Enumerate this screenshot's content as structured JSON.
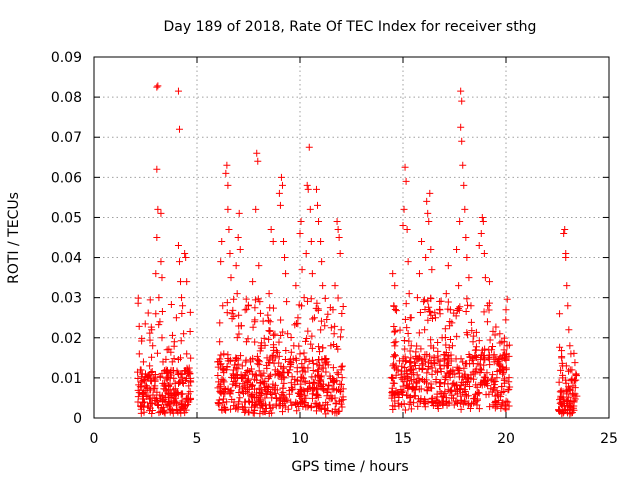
{
  "chart_data": {
    "type": "scatter",
    "title": "Day 189 of 2018, Rate Of TEC Index for receiver sthg",
    "xlabel": "GPS time / hours",
    "ylabel": "ROTI / TECUs",
    "xlim": [
      0,
      25
    ],
    "ylim": [
      0,
      0.09
    ],
    "xticks": [
      0,
      5,
      10,
      15,
      20,
      25
    ],
    "xtick_labels": [
      "0",
      "5",
      "10",
      "15",
      "20",
      "25"
    ],
    "yticks": [
      0,
      0.01,
      0.02,
      0.03,
      0.04,
      0.05,
      0.06,
      0.07,
      0.08,
      0.09
    ],
    "ytick_labels": [
      "0",
      "0.01",
      "0.02",
      "0.03",
      "0.04",
      "0.05",
      "0.06",
      "0.07",
      "0.08",
      "0.09"
    ],
    "grid": true,
    "marker": "+",
    "color": "#ff0000",
    "series": [
      {
        "name": "ROTI",
        "points": [
          [
            2.2,
            0.016
          ],
          [
            2.25,
            0.012
          ],
          [
            2.3,
            0.009
          ],
          [
            2.35,
            0.006
          ],
          [
            2.4,
            0.014
          ],
          [
            2.45,
            0.004
          ],
          [
            2.5,
            0.011
          ],
          [
            2.55,
            0.008
          ],
          [
            2.6,
            0.003
          ],
          [
            2.7,
            0.013
          ],
          [
            2.75,
            0.007
          ],
          [
            2.8,
            0.022
          ],
          [
            2.85,
            0.018
          ],
          [
            2.9,
            0.01
          ],
          [
            2.95,
            0.005
          ],
          [
            3.0,
            0.026
          ],
          [
            3.0,
            0.036
          ],
          [
            3.05,
            0.0825
          ],
          [
            3.1,
            0.0828
          ],
          [
            3.05,
            0.062
          ],
          [
            3.1,
            0.052
          ],
          [
            3.05,
            0.045
          ],
          [
            3.15,
            0.03
          ],
          [
            3.2,
            0.024
          ],
          [
            3.25,
            0.051
          ],
          [
            3.25,
            0.039
          ],
          [
            3.3,
            0.035
          ],
          [
            3.3,
            0.02
          ],
          [
            3.35,
            0.014
          ],
          [
            3.4,
            0.008
          ],
          [
            3.45,
            0.004
          ],
          [
            3.5,
            0.012
          ],
          [
            3.55,
            0.017
          ],
          [
            3.6,
            0.006
          ],
          [
            3.7,
            0.01
          ],
          [
            3.8,
            0.014
          ],
          [
            3.85,
            0.007
          ],
          [
            3.9,
            0.019
          ],
          [
            4.0,
            0.025
          ],
          [
            4.1,
            0.0815
          ],
          [
            4.15,
            0.072
          ],
          [
            4.1,
            0.043
          ],
          [
            4.15,
            0.039
          ],
          [
            4.2,
            0.034
          ],
          [
            4.25,
            0.03
          ],
          [
            4.3,
            0.028
          ],
          [
            4.35,
            0.021
          ],
          [
            4.4,
            0.041
          ],
          [
            4.45,
            0.04
          ],
          [
            4.5,
            0.034
          ],
          [
            4.5,
            0.016
          ],
          [
            4.55,
            0.012
          ],
          [
            4.6,
            0.008
          ],
          [
            4.6,
            0.004
          ],
          [
            4.65,
            0.011
          ],
          [
            4.2,
            0.015
          ],
          [
            4.3,
            0.006
          ],
          [
            6.0,
            0.014
          ],
          [
            6.05,
            0.009
          ],
          [
            6.1,
            0.019
          ],
          [
            6.15,
            0.039
          ],
          [
            6.2,
            0.044
          ],
          [
            6.25,
            0.028
          ],
          [
            6.3,
            0.016
          ],
          [
            6.35,
            0.006
          ],
          [
            6.4,
            0.061
          ],
          [
            6.45,
            0.063
          ],
          [
            6.5,
            0.058
          ],
          [
            6.5,
            0.052
          ],
          [
            6.55,
            0.047
          ],
          [
            6.6,
            0.041
          ],
          [
            6.65,
            0.035
          ],
          [
            6.7,
            0.026
          ],
          [
            6.75,
            0.011
          ],
          [
            6.8,
            0.004
          ],
          [
            6.9,
            0.038
          ],
          [
            6.95,
            0.031
          ],
          [
            7.0,
            0.045
          ],
          [
            7.05,
            0.051
          ],
          [
            7.1,
            0.042
          ],
          [
            7.15,
            0.023
          ],
          [
            7.2,
            0.013
          ],
          [
            7.3,
            0.008
          ],
          [
            7.4,
            0.019
          ],
          [
            7.5,
            0.028
          ],
          [
            7.6,
            0.014
          ],
          [
            7.7,
            0.034
          ],
          [
            7.8,
            0.024
          ],
          [
            7.85,
            0.052
          ],
          [
            7.9,
            0.066
          ],
          [
            7.95,
            0.064
          ],
          [
            8.0,
            0.038
          ],
          [
            8.05,
            0.029
          ],
          [
            8.1,
            0.018
          ],
          [
            8.2,
            0.009
          ],
          [
            8.3,
            0.005
          ],
          [
            8.4,
            0.015
          ],
          [
            8.5,
            0.031
          ],
          [
            8.55,
            0.024
          ],
          [
            8.6,
            0.047
          ],
          [
            8.7,
            0.044
          ],
          [
            8.8,
            0.012
          ],
          [
            8.9,
            0.007
          ],
          [
            9.0,
            0.056
          ],
          [
            9.05,
            0.053
          ],
          [
            9.1,
            0.06
          ],
          [
            9.15,
            0.058
          ],
          [
            9.2,
            0.044
          ],
          [
            9.25,
            0.04
          ],
          [
            9.3,
            0.036
          ],
          [
            9.35,
            0.029
          ],
          [
            9.4,
            0.021
          ],
          [
            9.5,
            0.012
          ],
          [
            9.55,
            0.004
          ],
          [
            9.7,
            0.018
          ],
          [
            9.8,
            0.033
          ],
          [
            9.9,
            0.025
          ],
          [
            10.0,
            0.046
          ],
          [
            10.05,
            0.049
          ],
          [
            10.1,
            0.037
          ],
          [
            10.2,
            0.03
          ],
          [
            10.3,
            0.041
          ],
          [
            10.35,
            0.058
          ],
          [
            10.4,
            0.057
          ],
          [
            10.45,
            0.0675
          ],
          [
            10.5,
            0.052
          ],
          [
            10.55,
            0.044
          ],
          [
            10.6,
            0.036
          ],
          [
            10.7,
            0.025
          ],
          [
            10.8,
            0.057
          ],
          [
            10.85,
            0.053
          ],
          [
            10.9,
            0.049
          ],
          [
            11.0,
            0.044
          ],
          [
            11.05,
            0.039
          ],
          [
            11.1,
            0.033
          ],
          [
            11.2,
            0.023
          ],
          [
            11.3,
            0.014
          ],
          [
            11.4,
            0.008
          ],
          [
            11.5,
            0.018
          ],
          [
            11.6,
            0.027
          ],
          [
            11.7,
            0.033
          ],
          [
            11.8,
            0.049
          ],
          [
            11.85,
            0.047
          ],
          [
            11.9,
            0.045
          ],
          [
            11.95,
            0.041
          ],
          [
            12.0,
            0.022
          ],
          [
            12.0,
            0.012
          ],
          [
            11.7,
            0.005
          ],
          [
            10.6,
            0.006
          ],
          [
            10.9,
            0.003
          ],
          [
            9.6,
            0.007
          ],
          [
            14.5,
            0.036
          ],
          [
            14.55,
            0.028
          ],
          [
            14.6,
            0.033
          ],
          [
            14.65,
            0.019
          ],
          [
            14.7,
            0.012
          ],
          [
            14.75,
            0.006
          ],
          [
            14.8,
            0.003
          ],
          [
            15.0,
            0.048
          ],
          [
            15.05,
            0.052
          ],
          [
            15.1,
            0.0625
          ],
          [
            15.15,
            0.059
          ],
          [
            15.2,
            0.047
          ],
          [
            15.25,
            0.039
          ],
          [
            15.3,
            0.031
          ],
          [
            15.35,
            0.025
          ],
          [
            15.4,
            0.018
          ],
          [
            15.5,
            0.012
          ],
          [
            15.6,
            0.007
          ],
          [
            15.7,
            0.03
          ],
          [
            15.8,
            0.036
          ],
          [
            15.9,
            0.044
          ],
          [
            16.0,
            0.029
          ],
          [
            16.05,
            0.022
          ],
          [
            16.1,
            0.04
          ],
          [
            16.15,
            0.054
          ],
          [
            16.2,
            0.051
          ],
          [
            16.25,
            0.049
          ],
          [
            16.3,
            0.056
          ],
          [
            16.35,
            0.042
          ],
          [
            16.4,
            0.037
          ],
          [
            16.5,
            0.015
          ],
          [
            16.6,
            0.009
          ],
          [
            16.7,
            0.004
          ],
          [
            16.8,
            0.026
          ],
          [
            16.9,
            0.02
          ],
          [
            17.0,
            0.013
          ],
          [
            17.1,
            0.031
          ],
          [
            17.2,
            0.038
          ],
          [
            17.3,
            0.027
          ],
          [
            17.4,
            0.018
          ],
          [
            17.5,
            0.008
          ],
          [
            17.6,
            0.042
          ],
          [
            17.7,
            0.033
          ],
          [
            17.75,
            0.049
          ],
          [
            17.8,
            0.0815
          ],
          [
            17.85,
            0.079
          ],
          [
            17.8,
            0.0725
          ],
          [
            17.85,
            0.069
          ],
          [
            17.9,
            0.063
          ],
          [
            17.95,
            0.058
          ],
          [
            18.0,
            0.052
          ],
          [
            18.05,
            0.045
          ],
          [
            18.1,
            0.04
          ],
          [
            18.2,
            0.035
          ],
          [
            18.3,
            0.028
          ],
          [
            18.4,
            0.019
          ],
          [
            18.5,
            0.011
          ],
          [
            18.6,
            0.006
          ],
          [
            18.7,
            0.043
          ],
          [
            18.8,
            0.046
          ],
          [
            18.85,
            0.05
          ],
          [
            18.9,
            0.049
          ],
          [
            18.95,
            0.041
          ],
          [
            19.0,
            0.035
          ],
          [
            19.1,
            0.024
          ],
          [
            19.2,
            0.034
          ],
          [
            19.3,
            0.017
          ],
          [
            19.4,
            0.009
          ],
          [
            19.5,
            0.004
          ],
          [
            19.6,
            0.014
          ],
          [
            19.7,
            0.021
          ],
          [
            19.8,
            0.019
          ],
          [
            19.9,
            0.012
          ],
          [
            20.0,
            0.027
          ],
          [
            20.05,
            0.018
          ],
          [
            20.1,
            0.007
          ],
          [
            20.15,
            0.003
          ],
          [
            22.6,
            0.026
          ],
          [
            22.7,
            0.015
          ],
          [
            22.75,
            0.01
          ],
          [
            22.8,
            0.046
          ],
          [
            22.85,
            0.047
          ],
          [
            22.9,
            0.04
          ],
          [
            22.9,
            0.041
          ],
          [
            22.95,
            0.033
          ],
          [
            23.0,
            0.028
          ],
          [
            23.05,
            0.022
          ],
          [
            23.1,
            0.018
          ],
          [
            23.15,
            0.016
          ],
          [
            23.2,
            0.012
          ],
          [
            23.25,
            0.008
          ],
          [
            23.3,
            0.004
          ],
          [
            23.35,
            0.006
          ],
          [
            23.4,
            0.011
          ],
          [
            22.65,
            0.005
          ]
        ],
        "bands": [
          {
            "x": [
              2.1,
              4.7
            ],
            "y": [
              0.001,
              0.012
            ],
            "peak": 0.03
          },
          {
            "x": [
              6.0,
              12.1
            ],
            "y": [
              0.001,
              0.015
            ],
            "peak": 0.03
          },
          {
            "x": [
              14.4,
              20.2
            ],
            "y": [
              0.002,
              0.016
            ],
            "peak": 0.03
          },
          {
            "x": [
              22.55,
              23.45
            ],
            "y": [
              0.001,
              0.01
            ],
            "peak": 0.018
          }
        ]
      }
    ]
  }
}
